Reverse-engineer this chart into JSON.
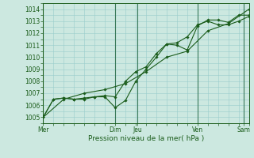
{
  "xlabel": "Pression niveau de la mer( hPa )",
  "ylim": [
    1004.5,
    1014.5
  ],
  "xlim": [
    0,
    120
  ],
  "yticks": [
    1005,
    1006,
    1007,
    1008,
    1009,
    1010,
    1011,
    1012,
    1013,
    1014
  ],
  "xtick_positions": [
    0,
    42,
    55,
    90,
    117
  ],
  "xtick_labels": [
    "Mer",
    "Dim",
    "Jeu",
    "Ven",
    "Sam"
  ],
  "vlines": [
    0,
    42,
    55,
    90,
    117
  ],
  "bg_color": "#cce8e0",
  "grid_color": "#99cccc",
  "line_color": "#1a5c1a",
  "series1_x": [
    0,
    6,
    12,
    18,
    24,
    30,
    36,
    42,
    48,
    54,
    60,
    66,
    72,
    78,
    84,
    90,
    96,
    102,
    108,
    114,
    120
  ],
  "series1_y": [
    1005.0,
    1006.5,
    1006.6,
    1006.5,
    1006.5,
    1006.7,
    1006.7,
    1005.8,
    1006.4,
    1008.0,
    1009.0,
    1010.0,
    1011.1,
    1011.0,
    1010.6,
    1012.6,
    1013.1,
    1013.1,
    1012.9,
    1013.5,
    1013.5
  ],
  "series2_x": [
    0,
    6,
    12,
    18,
    24,
    30,
    36,
    42,
    48,
    54,
    60,
    66,
    72,
    78,
    84,
    90,
    96,
    102,
    108,
    114,
    120
  ],
  "series2_y": [
    1005.0,
    1006.5,
    1006.6,
    1006.5,
    1006.6,
    1006.7,
    1006.8,
    1006.7,
    1008.0,
    1008.8,
    1009.2,
    1010.3,
    1011.1,
    1011.2,
    1011.7,
    1012.7,
    1013.0,
    1012.7,
    1012.7,
    1013.0,
    1013.4
  ],
  "series3_x": [
    0,
    12,
    24,
    36,
    48,
    60,
    72,
    84,
    96,
    108,
    120
  ],
  "series3_y": [
    1005.0,
    1006.5,
    1007.0,
    1007.3,
    1007.8,
    1008.8,
    1010.0,
    1010.5,
    1012.2,
    1012.8,
    1014.0
  ]
}
